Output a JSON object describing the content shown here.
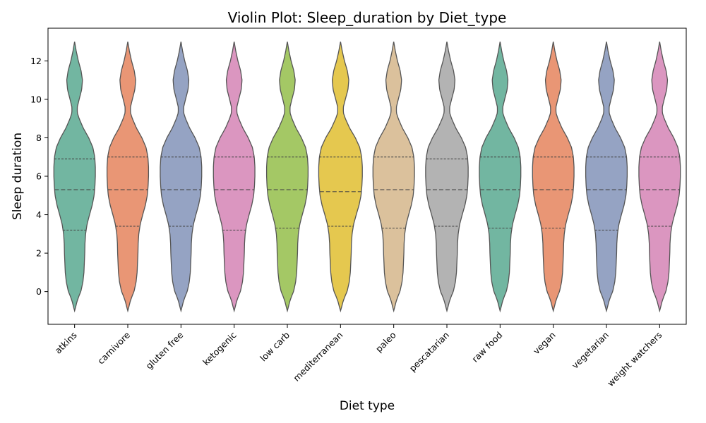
{
  "chart_data": {
    "type": "violin",
    "title": "Violin Plot: Sleep_duration by Diet_type",
    "xlabel": "Diet type",
    "ylabel": "Sleep duration",
    "ylim": [
      -1.7,
      13.7
    ],
    "yticks": [
      0,
      2,
      4,
      6,
      8,
      10,
      12
    ],
    "grid": false,
    "inner": "quartile",
    "categories": [
      "atkins",
      "carnivore",
      "gluten free",
      "ketogenic",
      "low carb",
      "mediterranean",
      "paleo",
      "pescatarian",
      "raw food",
      "vegan",
      "vegetarian",
      "weight watchers"
    ],
    "colors": [
      "#72b6a1",
      "#e99675",
      "#95a3c3",
      "#db96c0",
      "#a4c865",
      "#e5c84f",
      "#dbc19c",
      "#b3b3b3",
      "#72b6a1",
      "#e99675",
      "#95a3c3",
      "#db96c0"
    ],
    "kde_range": [
      -1,
      13
    ],
    "series": [
      {
        "category": "atkins",
        "q1": 3.2,
        "median": 5.3,
        "q3": 6.9,
        "max_halfwidth": 0.78
      },
      {
        "category": "carnivore",
        "q1": 3.4,
        "median": 5.3,
        "q3": 7.0,
        "max_halfwidth": 0.78
      },
      {
        "category": "gluten free",
        "q1": 3.4,
        "median": 5.3,
        "q3": 7.0,
        "max_halfwidth": 0.78
      },
      {
        "category": "ketogenic",
        "q1": 3.2,
        "median": 5.3,
        "q3": 7.0,
        "max_halfwidth": 0.78
      },
      {
        "category": "low carb",
        "q1": 3.3,
        "median": 5.3,
        "q3": 7.0,
        "max_halfwidth": 0.78
      },
      {
        "category": "mediterranean",
        "q1": 3.4,
        "median": 5.2,
        "q3": 7.0,
        "max_halfwidth": 0.82
      },
      {
        "category": "paleo",
        "q1": 3.3,
        "median": 5.3,
        "q3": 7.0,
        "max_halfwidth": 0.78
      },
      {
        "category": "pescatarian",
        "q1": 3.4,
        "median": 5.3,
        "q3": 6.9,
        "max_halfwidth": 0.8
      },
      {
        "category": "raw food",
        "q1": 3.3,
        "median": 5.3,
        "q3": 7.0,
        "max_halfwidth": 0.78
      },
      {
        "category": "vegan",
        "q1": 3.3,
        "median": 5.3,
        "q3": 7.0,
        "max_halfwidth": 0.78
      },
      {
        "category": "vegetarian",
        "q1": 3.2,
        "median": 5.3,
        "q3": 7.0,
        "max_halfwidth": 0.78
      },
      {
        "category": "weight watchers",
        "q1": 3.4,
        "median": 5.3,
        "q3": 7.0,
        "max_halfwidth": 0.78
      }
    ],
    "density_profile": [
      [
        -1.0,
        0.0
      ],
      [
        -0.8,
        0.05
      ],
      [
        -0.5,
        0.12
      ],
      [
        -0.2,
        0.22
      ],
      [
        0.0,
        0.3
      ],
      [
        0.5,
        0.4
      ],
      [
        1.0,
        0.45
      ],
      [
        1.5,
        0.47
      ],
      [
        2.0,
        0.49
      ],
      [
        2.5,
        0.5
      ],
      [
        3.0,
        0.53
      ],
      [
        3.5,
        0.6
      ],
      [
        4.0,
        0.72
      ],
      [
        4.5,
        0.85
      ],
      [
        5.0,
        0.94
      ],
      [
        5.5,
        0.98
      ],
      [
        6.0,
        1.0
      ],
      [
        6.5,
        1.0
      ],
      [
        7.0,
        0.97
      ],
      [
        7.5,
        0.88
      ],
      [
        8.0,
        0.68
      ],
      [
        8.5,
        0.42
      ],
      [
        9.0,
        0.22
      ],
      [
        9.3,
        0.13
      ],
      [
        9.6,
        0.13
      ],
      [
        10.0,
        0.22
      ],
      [
        10.5,
        0.34
      ],
      [
        11.0,
        0.38
      ],
      [
        11.5,
        0.31
      ],
      [
        12.0,
        0.18
      ],
      [
        12.5,
        0.08
      ],
      [
        13.0,
        0.0
      ]
    ]
  }
}
